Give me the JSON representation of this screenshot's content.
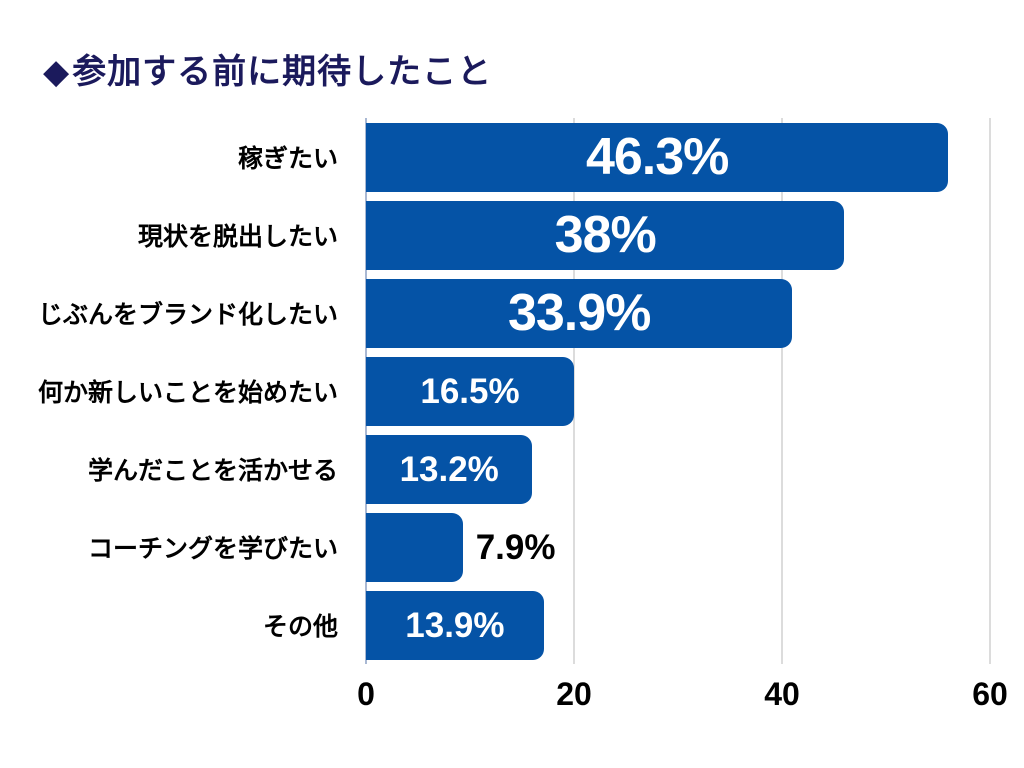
{
  "header": {
    "bullet": "◆",
    "title": "参加する前に期待したこと"
  },
  "colors": {
    "bar": "#0553a6",
    "title": "#1b1a5c",
    "value_inside": "#ffffff",
    "value_outside": "#000000",
    "category_text": "#000000",
    "tick_text": "#000000",
    "gridline": "#dcdcdc",
    "axis_line": "#a9b8d3",
    "background": "#ffffff"
  },
  "chart_data": {
    "type": "bar",
    "orientation": "horizontal",
    "title": "参加する前に期待したこと",
    "xlabel": "",
    "ylabel": "",
    "xlim": [
      0,
      60
    ],
    "x_ticks": [
      0,
      20,
      40,
      60
    ],
    "grid": true,
    "legend": false,
    "categories": [
      "稼ぎたい",
      "現状を脱出したい",
      "じぶんをブランド化したい",
      "何か新しいことを始めたい",
      "学んだことを活かせる",
      "コーチングを学びたい",
      "その他"
    ],
    "values_percent": [
      46.3,
      38,
      33.9,
      16.5,
      13.2,
      7.9,
      13.9
    ],
    "rows": [
      {
        "category": "稼ぎたい",
        "percent": 46.3,
        "label": "46.3%",
        "bar_axis_length": 56.0,
        "label_size": "large",
        "label_placement": "inside"
      },
      {
        "category": "現状を脱出したい",
        "percent": 38,
        "label": "38%",
        "bar_axis_length": 46.0,
        "label_size": "large",
        "label_placement": "inside"
      },
      {
        "category": "じぶんをブランド化したい",
        "percent": 33.9,
        "label": "33.9%",
        "bar_axis_length": 41.0,
        "label_size": "large",
        "label_placement": "inside"
      },
      {
        "category": "何か新しいことを始めたい",
        "percent": 16.5,
        "label": "16.5%",
        "bar_axis_length": 20.0,
        "label_size": "small",
        "label_placement": "inside"
      },
      {
        "category": "学んだことを活かせる",
        "percent": 13.2,
        "label": "13.2%",
        "bar_axis_length": 16.0,
        "label_size": "small",
        "label_placement": "inside"
      },
      {
        "category": "コーチングを学びたい",
        "percent": 7.9,
        "label": "7.9%",
        "bar_axis_length": 9.3,
        "label_size": "small",
        "label_placement": "outside"
      },
      {
        "category": "その他",
        "percent": 13.9,
        "label": "13.9%",
        "bar_axis_length": 17.1,
        "label_size": "small",
        "label_placement": "inside"
      }
    ]
  }
}
